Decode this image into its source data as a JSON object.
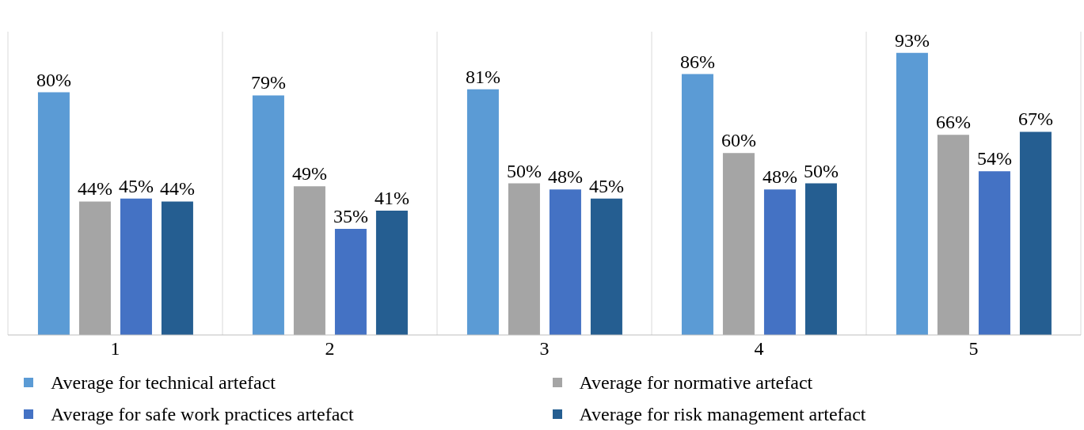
{
  "chart_data": {
    "type": "bar",
    "categories": [
      "1",
      "2",
      "3",
      "4",
      "5"
    ],
    "series": [
      {
        "name": "Average for technical artefact",
        "color": "#5b9bd5",
        "values": [
          80,
          79,
          81,
          86,
          93
        ],
        "value_labels": [
          "80%",
          "79%",
          "81%",
          "86%",
          "93%"
        ]
      },
      {
        "name": "Average for normative artefact",
        "color": "#a5a5a5",
        "values": [
          44,
          49,
          50,
          60,
          66
        ],
        "value_labels": [
          "44%",
          "49%",
          "50%",
          "60%",
          "66%"
        ]
      },
      {
        "name": "Average for safe work practices artefact",
        "color": "#4472c4",
        "values": [
          45,
          35,
          48,
          48,
          54
        ],
        "value_labels": [
          "45%",
          "35%",
          "48%",
          "48%",
          "54%"
        ]
      },
      {
        "name": "Average for risk management artefact",
        "color": "#255e91",
        "values": [
          44,
          41,
          45,
          50,
          67
        ],
        "value_labels": [
          "44%",
          "41%",
          "45%",
          "50%",
          "67%"
        ]
      }
    ],
    "grid": "x",
    "legend": "bottom"
  }
}
